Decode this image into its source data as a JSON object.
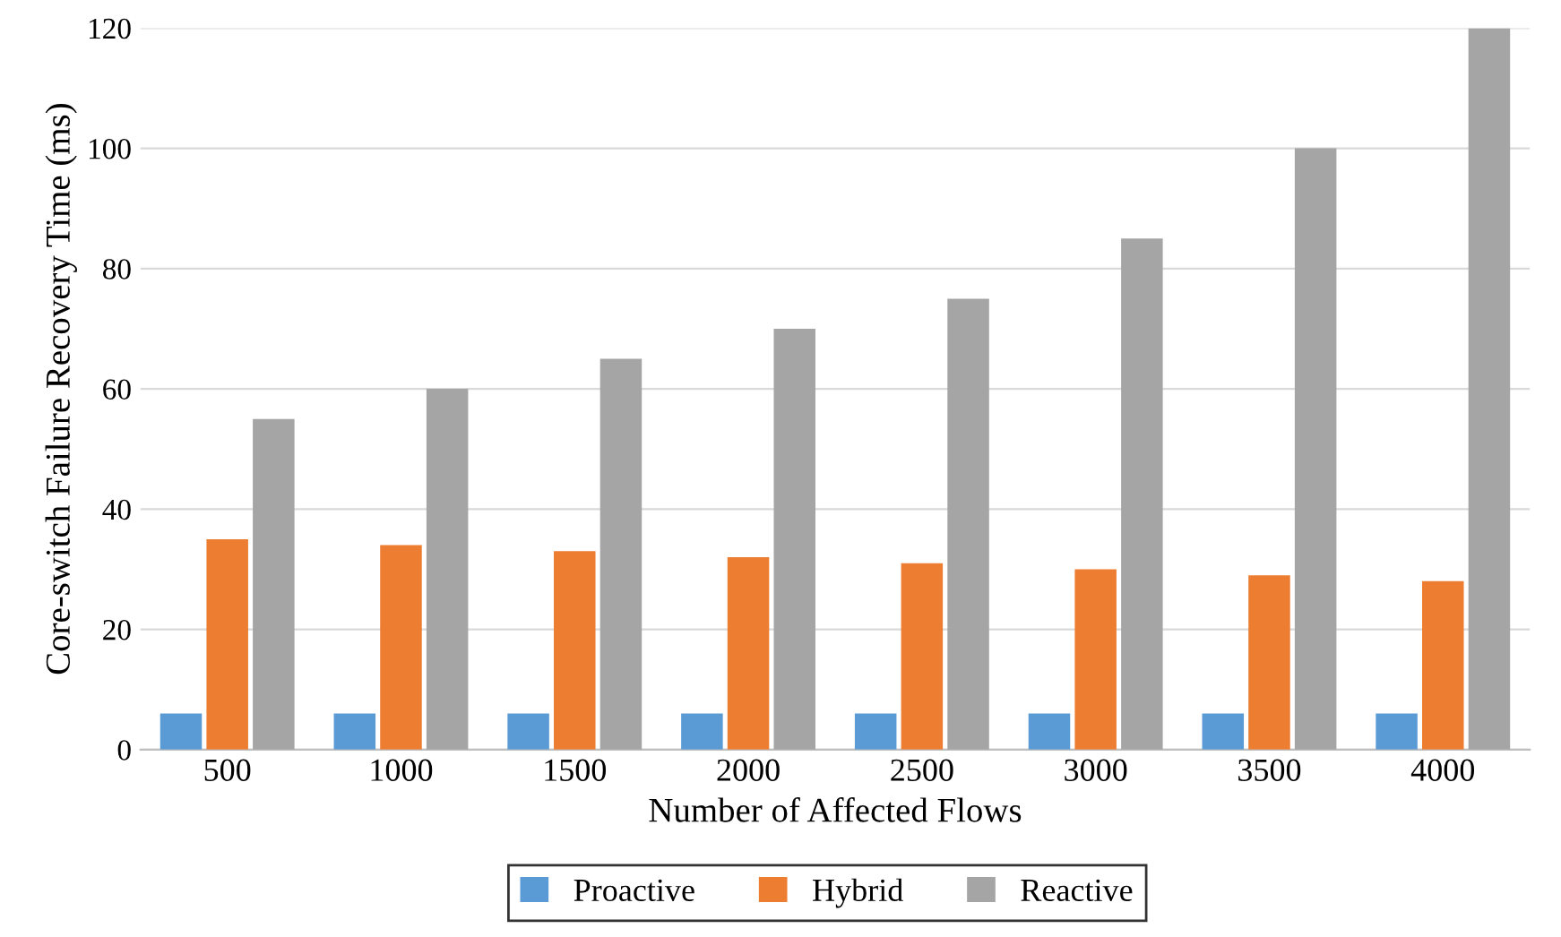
{
  "chart_data": {
    "type": "bar",
    "xlabel": "Number of Affected Flows",
    "ylabel": "Core-switch Failure Recovery Time (ms)",
    "categories": [
      "500",
      "1000",
      "1500",
      "2000",
      "2500",
      "3000",
      "3500",
      "4000"
    ],
    "series": [
      {
        "name": "Proactive",
        "color": "#5b9bd5",
        "values": [
          6,
          6,
          6,
          6,
          6,
          6,
          6,
          6
        ]
      },
      {
        "name": "Hybrid",
        "color": "#ed7d31",
        "values": [
          35,
          34,
          33,
          32,
          31,
          30,
          29,
          28
        ]
      },
      {
        "name": "Reactive",
        "color": "#a5a5a5",
        "values": [
          55,
          60,
          65,
          70,
          75,
          85,
          100,
          120
        ]
      }
    ],
    "ylim": [
      0,
      120
    ],
    "yticks": [
      0,
      20,
      40,
      60,
      80,
      100,
      120
    ],
    "grid": "y",
    "legend": "bottom"
  }
}
